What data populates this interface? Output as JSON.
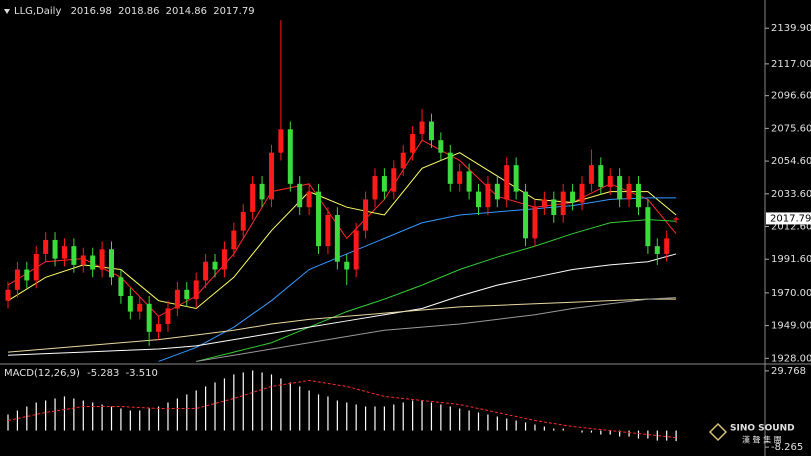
{
  "chart_data": [
    {
      "type": "candlestick",
      "title": "LLG,Daily",
      "up_color": "#ff1a1a",
      "down_color": "#3ddc3d",
      "open": [
        1965,
        1972,
        1985,
        1978,
        1995,
        2004,
        1992,
        2000,
        1988,
        1994,
        1985,
        1998,
        1980,
        1968,
        1958,
        1963,
        1945,
        1950,
        1960,
        1972,
        1966,
        1978,
        1990,
        1985,
        1998,
        2010,
        2022,
        2040,
        2030,
        2060,
        2075,
        2040,
        2025,
        2035,
        2000,
        2020,
        1990,
        1985,
        2010,
        2030,
        2045,
        2035,
        2050,
        2060,
        2072,
        2080,
        2068,
        2060,
        2040,
        2048,
        2035,
        2025,
        2040,
        2030,
        2052,
        2035,
        2005,
        2025,
        2030,
        2020,
        2035,
        2028,
        2040,
        2052,
        2038,
        2045,
        2030,
        2040,
        2025,
        2000,
        1995,
        2016.98
      ],
      "high": [
        1977,
        1990,
        1990,
        2000,
        2009,
        2009,
        2005,
        2005,
        1999,
        1999,
        2003,
        2003,
        1985,
        1973,
        1968,
        1968,
        1955,
        1965,
        1977,
        1977,
        1983,
        1995,
        1995,
        2003,
        2015,
        2027,
        2045,
        2045,
        2065,
        2145,
        2080,
        2045,
        2040,
        2040,
        2025,
        2025,
        1995,
        2015,
        2035,
        2050,
        2050,
        2055,
        2065,
        2077,
        2088,
        2085,
        2073,
        2065,
        2053,
        2053,
        2040,
        2045,
        2045,
        2057,
        2057,
        2040,
        2030,
        2035,
        2035,
        2040,
        2040,
        2045,
        2062,
        2057,
        2050,
        2050,
        2045,
        2045,
        2030,
        2005,
        2010,
        2018.86
      ],
      "low": [
        1960,
        1967,
        1973,
        1973,
        1990,
        1987,
        1987,
        1983,
        1983,
        1980,
        1980,
        1975,
        1963,
        1953,
        1953,
        1936,
        1940,
        1945,
        1955,
        1961,
        1961,
        1973,
        1980,
        1980,
        1993,
        2005,
        2017,
        2025,
        2025,
        2055,
        2035,
        2020,
        2020,
        1995,
        1995,
        1985,
        1975,
        1980,
        2005,
        2025,
        2030,
        2030,
        2045,
        2055,
        2067,
        2063,
        2055,
        2035,
        2035,
        2030,
        2020,
        2020,
        2025,
        2025,
        2030,
        2000,
        2000,
        2020,
        2015,
        2015,
        2023,
        2023,
        2035,
        2033,
        2033,
        2025,
        2025,
        2020,
        1995,
        1988,
        1990,
        2014.86
      ],
      "close": [
        1972,
        1985,
        1978,
        1995,
        2004,
        1992,
        2000,
        1988,
        1994,
        1985,
        1998,
        1980,
        1968,
        1958,
        1963,
        1945,
        1950,
        1960,
        1972,
        1966,
        1978,
        1990,
        1985,
        1998,
        2010,
        2022,
        2040,
        2030,
        2060,
        2075,
        2040,
        2025,
        2035,
        2000,
        2020,
        1990,
        1985,
        2010,
        2030,
        2045,
        2035,
        2050,
        2060,
        2072,
        2080,
        2068,
        2060,
        2040,
        2048,
        2035,
        2025,
        2040,
        2030,
        2052,
        2035,
        2005,
        2025,
        2030,
        2020,
        2035,
        2028,
        2040,
        2052,
        2038,
        2045,
        2030,
        2040,
        2025,
        2000,
        1995,
        2005,
        2017.79
      ],
      "series": [
        {
          "color": "#ff2a2a",
          "x": [
            0,
            4,
            8,
            12,
            16,
            20,
            24,
            28,
            32,
            36,
            40,
            44,
            48,
            52,
            56,
            60,
            64,
            68,
            71
          ],
          "values": [
            1975,
            1990,
            1992,
            1980,
            1955,
            1968,
            1995,
            2035,
            2040,
            2005,
            2030,
            2068,
            2055,
            2032,
            2025,
            2028,
            2040,
            2030,
            2008
          ]
        },
        {
          "color": "#ffff66",
          "x": [
            0,
            4,
            8,
            12,
            16,
            20,
            24,
            28,
            32,
            36,
            40,
            44,
            48,
            52,
            56,
            60,
            64,
            68,
            71
          ],
          "values": [
            1965,
            1980,
            1988,
            1985,
            1965,
            1960,
            1980,
            2010,
            2035,
            2025,
            2020,
            2050,
            2060,
            2045,
            2030,
            2028,
            2035,
            2035,
            2020
          ]
        },
        {
          "color": "#3399ff",
          "x": [
            0,
            4,
            8,
            12,
            16,
            20,
            24,
            28,
            32,
            36,
            40,
            44,
            48,
            52,
            56,
            60,
            64,
            68,
            71
          ],
          "values": [
            null,
            null,
            null,
            null,
            1926,
            1935,
            1948,
            1965,
            1985,
            1995,
            2005,
            2015,
            2020,
            2022,
            2024,
            2026,
            2030,
            2031,
            2031
          ]
        },
        {
          "color": "#33cc33",
          "x": [
            0,
            4,
            8,
            12,
            16,
            20,
            24,
            28,
            32,
            36,
            40,
            44,
            48,
            52,
            56,
            60,
            64,
            68,
            71
          ],
          "values": [
            null,
            null,
            null,
            null,
            null,
            1926,
            1932,
            1938,
            1948,
            1958,
            1966,
            1975,
            1985,
            1993,
            2000,
            2008,
            2015,
            2017,
            2016
          ]
        },
        {
          "color": "#ffffff",
          "x": [
            0,
            4,
            8,
            12,
            16,
            20,
            24,
            28,
            32,
            36,
            40,
            44,
            48,
            52,
            56,
            60,
            64,
            68,
            71
          ],
          "values": [
            1930,
            1931,
            1932,
            1933,
            1934,
            1936,
            1940,
            1944,
            1948,
            1952,
            1956,
            1960,
            1968,
            1975,
            1980,
            1985,
            1988,
            1990,
            1995
          ]
        },
        {
          "color": "#e8d8a0",
          "x": [
            0,
            4,
            8,
            12,
            16,
            20,
            24,
            28,
            32,
            36,
            40,
            44,
            48,
            52,
            56,
            60,
            64,
            68,
            71
          ],
          "values": [
            1932,
            1934,
            1936,
            1938,
            1940,
            1943,
            1946,
            1950,
            1953,
            1955,
            1957,
            1959,
            1961,
            1962,
            1963,
            1964,
            1965,
            1966,
            1966
          ]
        },
        {
          "color": "#999999",
          "x": [
            0,
            4,
            8,
            12,
            16,
            20,
            24,
            28,
            32,
            36,
            40,
            44,
            48,
            52,
            56,
            60,
            64,
            68,
            71
          ],
          "values": [
            null,
            null,
            null,
            null,
            null,
            1926,
            1930,
            1934,
            1938,
            1942,
            1946,
            1948,
            1950,
            1953,
            1956,
            1960,
            1963,
            1966,
            1967
          ]
        }
      ],
      "ylim": [
        1925,
        2158
      ],
      "yticks": [
        {
          "value": 2139.9,
          "label": "2139.90"
        },
        {
          "value": 2117,
          "label": "2117.00"
        },
        {
          "value": 2096.6,
          "label": "2096.60"
        },
        {
          "value": 2075.6,
          "label": "2075.60"
        },
        {
          "value": 2054.6,
          "label": "2054.60"
        },
        {
          "value": 2033.6,
          "label": "2033.60"
        },
        {
          "value": 2012.6,
          "label": "2012.60"
        },
        {
          "value": 1991.6,
          "label": "1991.60"
        },
        {
          "value": 1970,
          "label": "1970.00"
        },
        {
          "value": 1949,
          "label": "1949.00"
        },
        {
          "value": 1928,
          "label": "1928.00"
        }
      ]
    },
    {
      "type": "macd",
      "title": "MACD(12,26,9)",
      "color": "#ffffff",
      "values": [
        8,
        10,
        12,
        14,
        15,
        16,
        17,
        16,
        15,
        14,
        13,
        12,
        11,
        10,
        10,
        11,
        12,
        14,
        16,
        18,
        20,
        22,
        24,
        26,
        28,
        29,
        30,
        29,
        28,
        26,
        24,
        22,
        20,
        18,
        17,
        15,
        14,
        13,
        12,
        12,
        12,
        13,
        14,
        15,
        15,
        14,
        13,
        12,
        11,
        10,
        9,
        8,
        7,
        6,
        5,
        4,
        3,
        2,
        1,
        1,
        0,
        -1,
        -1,
        -2,
        -2,
        -3,
        -3,
        -4,
        -4,
        -5,
        -5,
        -5.283
      ],
      "signal": {
        "color": "#ff2a2a",
        "x": [
          0,
          4,
          8,
          12,
          16,
          20,
          24,
          28,
          32,
          36,
          40,
          44,
          48,
          52,
          56,
          60,
          64,
          68,
          71
        ],
        "values": [
          5,
          9,
          12,
          12,
          11,
          11,
          16,
          22,
          25,
          22,
          17,
          15,
          13,
          9,
          5,
          2,
          0,
          -2,
          -3.51
        ],
        "value_labels": [
          null,
          null,
          null,
          null,
          null,
          null,
          null,
          null,
          null,
          null,
          null,
          null,
          null,
          null,
          null,
          null,
          null,
          null,
          "-3.510"
        ]
      },
      "ylim": [
        -12.7,
        32.7
      ],
      "yticks": [
        29.768,
        -8.265
      ]
    }
  ],
  "logo": {
    "name": "SINO SOUND",
    "chinese": "漢 聲 集 團"
  }
}
